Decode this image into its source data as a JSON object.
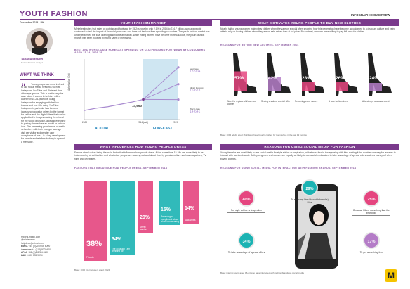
{
  "header": {
    "title": "YOUTH FASHION",
    "date": "December 2014 - UK",
    "overview": "INFOGRAPHIC OVERVIEW"
  },
  "analyst": {
    "name": "TAMARA SENDER",
    "role": "Senior Fashion Analyst"
  },
  "what_we_think": {
    "heading": "WHAT WE THINK",
    "body": "Young people are most inclined to use social media networks such as Instagram, YouTube and Pinterest than other age groups. This is particularly the case when it comes to fashion, with a quarter of 15-24-year-olds using Instagram for engaging with fashion brands and one fifth using YouTube. Instagram in particular has become increasingly popular driven by the format for selfies and the digital filters that can be applied to the images making them ideal for the world of fashion, allowing everyone to portray themselves as model or fashion icon. The increasing prominence of media networks – with their younger average visit per visitor and greater user acceptance of ads – is a key development for brands and retailers looking to spread a message."
  },
  "contact": {
    "site": "reports.mintel.com",
    "twitter": "@mintelnews",
    "email": "helpdesk@mintel.com",
    "emea_label": "EMEA",
    "emea": "+44 (0)20 7606 6000",
    "americas_label": "Americas",
    "americas": "+1 (312) 9325400",
    "apac_label": "APAC",
    "apac": "+61 (0)2 8284 8100",
    "lar_label": "LAR",
    "lar": "0 800 095 9094",
    "logo": "M"
  },
  "market": {
    "heading": "YOUTH FASHION MARKET",
    "body": "Mintel estimates that sales of clothing and footwear by 15-24s rose by only 2.1% in 2014 to £14.7 billion as young people continued to feel the impact of financial pressures and have cut back on their spending on clothes. The youth fashion market has underperformed the total clothing and footwear market. While young women have become more cautious, the youth fashion market has been boosted by rising sales of menswear.",
    "chart_title": "BEST AND WORST-CASE FORECAST SPENDING ON CLOTHING AND FOOTWEAR BY CONSUMERS AGED 15-24, 2009-19"
  },
  "chart_data": {
    "type": "line",
    "ylabel": "Market value (£m)",
    "x": [
      "2009",
      "2014 (est.)",
      "2019"
    ],
    "actual_label": "ACTUAL",
    "forecast_label": "FORECAST",
    "point_label": "14,660",
    "best_label": "best case",
    "best_value": "18,904",
    "fc_label": "Mintel forecast",
    "fc_value": "16,673",
    "worst_label": "Worst case",
    "worst_value": "14,641",
    "actual_values": [
      13200,
      13500,
      13700,
      14000,
      14300,
      14660
    ],
    "best": 18904,
    "forecast": 16673,
    "worst": 14641
  },
  "motivates": {
    "heading": "WHAT MOTIVATES YOUNG PEOPLE TO BUY NEW CLOTHES",
    "body": "Nearly half of young women mainly buy clothes when they are on special offer, showing how this generation have become accustomed to a discount culture and being able to rely on buying clothes when they are on sale rather than at full price. By contrast, men are more willing to pay full price for clothes.",
    "sub": "REASONS FOR BUYING NEW CLOTHES, SEPTEMBER 2014",
    "items": [
      {
        "pct": "57%",
        "label": "Need to replace old/worn out clothes"
      },
      {
        "pct": "42%",
        "label": "Seeing a sale or special offer"
      },
      {
        "pct": "28%",
        "label": "Receiving extra money"
      },
      {
        "pct": "26%",
        "label": "A new fashion trend"
      },
      {
        "pct": "24%",
        "label": "Attending a seasonal event"
      }
    ],
    "note": "Base: 1094 adults aged 16-24 who have bought clothes for themselves in the last 12 months"
  },
  "influences": {
    "heading": "WHAT INFLUENCES HOW YOUNG PEOPLE DRESS",
    "body": "Friends stand out as being the main factor that influences how people dress. At the same time 15-24s are more likely to be influenced by street fashion and what other people are wearing out and about than by popular culture such as magazines, TV, films and celebrities.",
    "sub": "FACTORS THAT INFLUENCE HOW PEOPLE DRESS, SEPTEMBER 2014",
    "items": [
      {
        "pct": "38%",
        "label": "Friends"
      },
      {
        "pct": "34%",
        "label": "The occasion I am dressing for"
      },
      {
        "pct": "20%",
        "label": "Street fashion"
      },
      {
        "pct": "15%",
        "label": "Receiving a compliment about what I am wearing"
      },
      {
        "pct": "14%",
        "label": "Magazines"
      }
    ],
    "note": "Base: 1000 internet users aged 16-24"
  },
  "social": {
    "heading": "REASONS FOR USING SOCIAL MEDIA FOR FASHION",
    "body": "Young females are most likely to use social media for style advice or inspiration, with almost four in ten agreeing with this, making it the number one way for females to interact with fashion brands. Both young men and women are equally as likely to use social media sites to take advantage of special offers such as money off when buying clothes.",
    "sub": "REASONS FOR USING SOCIAL MEDIA FOR INTERACTING WITH FASHION BRANDS, SEPTEMBER 2014",
    "items": [
      {
        "pct": "40%",
        "label": "For style advice or inspiration"
      },
      {
        "pct": "29%",
        "label": "To show my likes/do which brand(s) I like"
      },
      {
        "pct": "25%",
        "label": "Because I liked something that the brand did"
      },
      {
        "pct": "34%",
        "label": "To take advantage of special offers"
      },
      {
        "pct": "17%",
        "label": "To get something free"
      }
    ],
    "note": "Base: internet users aged 16-24 who have interacted with fashion brands on social media"
  },
  "colors": {
    "accent": "#7a3a8c",
    "pink": "#e5457f",
    "teal": "#1bb3b3",
    "lightpurple": "#b47cc7"
  }
}
